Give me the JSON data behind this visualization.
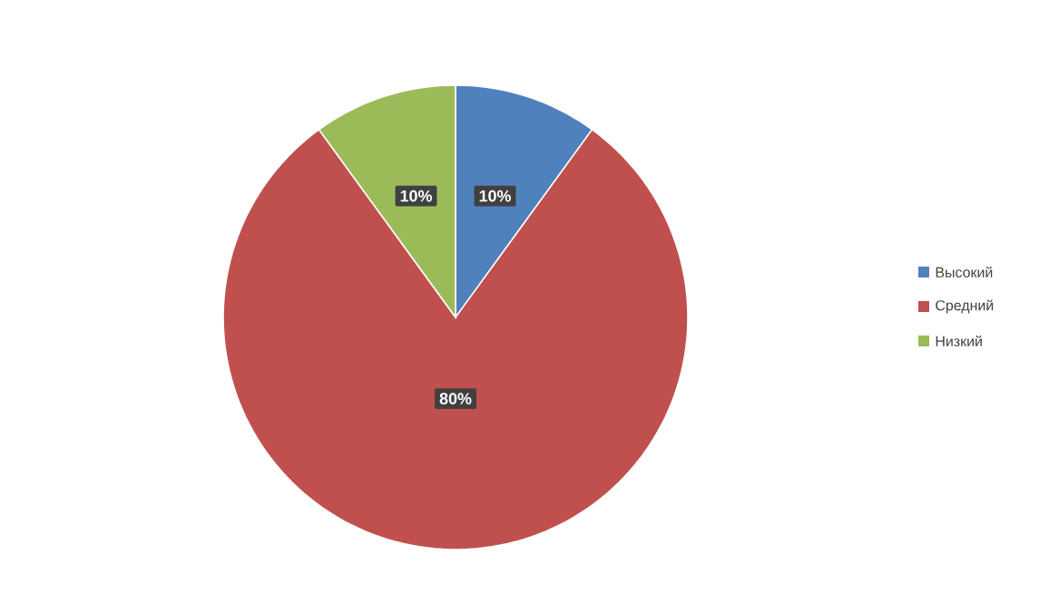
{
  "chart_data": {
    "type": "pie",
    "categories": [
      "Высокий",
      "Средний",
      "Низкий"
    ],
    "values": [
      10,
      80,
      10
    ],
    "colors": [
      "#4f81bd",
      "#c0504d",
      "#9bbb59"
    ],
    "value_labels": [
      "10%",
      "80%",
      "10%"
    ],
    "legend": "right"
  }
}
